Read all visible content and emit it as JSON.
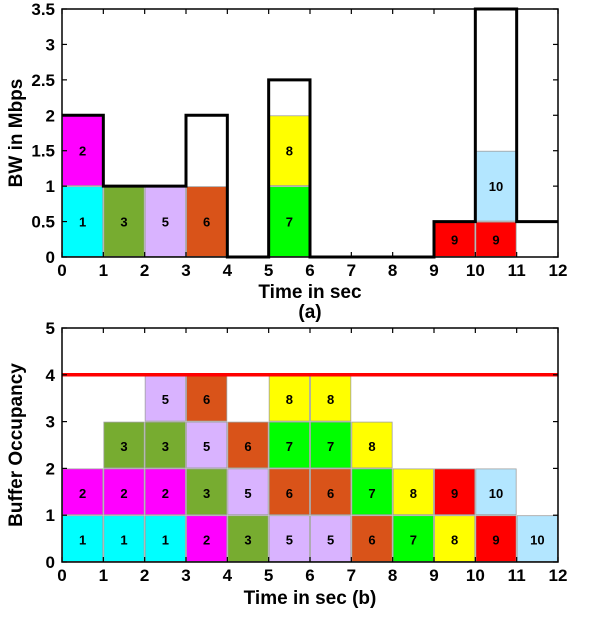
{
  "colors": {
    "1": "#00ffff",
    "2": "#ff00ff",
    "3": "#77ac30",
    "5": "#d9b3ff",
    "6": "#d95319",
    "7": "#00ff00",
    "8": "#ffff00",
    "9": "#ff0000",
    "10": "#b3e6ff",
    "envelope": "#000000",
    "max_buffer_line": "#ff0000"
  },
  "chart_data": [
    {
      "type": "bar",
      "caption": "(a)",
      "xlabel": "Time in sec",
      "ylabel": "BW in Mbps",
      "xlim": [
        0,
        12
      ],
      "ylim": [
        0,
        3.5
      ],
      "xticks": [
        "0",
        "1",
        "2",
        "3",
        "4",
        "5",
        "6",
        "7",
        "8",
        "9",
        "10",
        "11",
        "12"
      ],
      "yticks": [
        "0",
        "0.5",
        "1",
        "1.5",
        "2",
        "2.5",
        "3",
        "3.5"
      ],
      "bandwidth_envelope": {
        "x": [
          0,
          1,
          1,
          3,
          3,
          4,
          4,
          5,
          5,
          6,
          6,
          9,
          9,
          10,
          10,
          11,
          11,
          12
        ],
        "y": [
          2,
          2,
          1,
          1,
          2,
          2,
          0,
          0,
          2.5,
          2.5,
          0,
          0,
          0.5,
          0.5,
          3.5,
          3.5,
          0.5,
          0.5
        ]
      },
      "blocks": [
        {
          "label": "1",
          "x0": 0,
          "x1": 1,
          "y0": 0,
          "y1": 1
        },
        {
          "label": "2",
          "x0": 0,
          "x1": 1,
          "y0": 1,
          "y1": 2
        },
        {
          "label": "3",
          "x0": 1,
          "x1": 2,
          "y0": 0,
          "y1": 1
        },
        {
          "label": "5",
          "x0": 2,
          "x1": 3,
          "y0": 0,
          "y1": 1
        },
        {
          "label": "6",
          "x0": 3,
          "x1": 4,
          "y0": 0,
          "y1": 1
        },
        {
          "label": "7",
          "x0": 5,
          "x1": 6,
          "y0": 0,
          "y1": 1
        },
        {
          "label": "8",
          "x0": 5,
          "x1": 6,
          "y0": 1,
          "y1": 2
        },
        {
          "label": "9",
          "x0": 9,
          "x1": 10,
          "y0": 0,
          "y1": 0.5
        },
        {
          "label": "9",
          "x0": 10,
          "x1": 11,
          "y0": 0,
          "y1": 0.5
        },
        {
          "label": "10",
          "x0": 10,
          "x1": 11,
          "y0": 0.5,
          "y1": 1.5
        }
      ]
    },
    {
      "type": "bar",
      "xlabel": "Time in sec (b)",
      "ylabel": "Buffer Occupancy",
      "xlim": [
        0,
        12
      ],
      "ylim": [
        0,
        5
      ],
      "xticks": [
        "0",
        "1",
        "2",
        "3",
        "4",
        "5",
        "6",
        "7",
        "8",
        "9",
        "10",
        "11",
        "12"
      ],
      "yticks": [
        "0",
        "1",
        "2",
        "3",
        "4",
        "5"
      ],
      "max_buffer": 4,
      "stacks": [
        {
          "x0": 0,
          "x1": 1,
          "labels": [
            "1",
            "2"
          ]
        },
        {
          "x0": 1,
          "x1": 2,
          "labels": [
            "1",
            "2",
            "3"
          ]
        },
        {
          "x0": 2,
          "x1": 3,
          "labels": [
            "1",
            "2",
            "3",
            "5"
          ]
        },
        {
          "x0": 3,
          "x1": 4,
          "labels": [
            "2",
            "3",
            "5",
            "6"
          ]
        },
        {
          "x0": 4,
          "x1": 5,
          "labels": [
            "3",
            "5",
            "6"
          ]
        },
        {
          "x0": 5,
          "x1": 6,
          "labels": [
            "5",
            "6",
            "7",
            "8"
          ]
        },
        {
          "x0": 6,
          "x1": 7,
          "labels": [
            "5",
            "6",
            "7",
            "8"
          ]
        },
        {
          "x0": 7,
          "x1": 8,
          "labels": [
            "6",
            "7",
            "8"
          ]
        },
        {
          "x0": 8,
          "x1": 9,
          "labels": [
            "7",
            "8"
          ]
        },
        {
          "x0": 9,
          "x1": 10,
          "labels": [
            "8",
            "9"
          ]
        },
        {
          "x0": 10,
          "x1": 11,
          "labels": [
            "9",
            "10"
          ]
        },
        {
          "x0": 11,
          "x1": 12,
          "labels": [
            "10"
          ]
        }
      ]
    }
  ]
}
